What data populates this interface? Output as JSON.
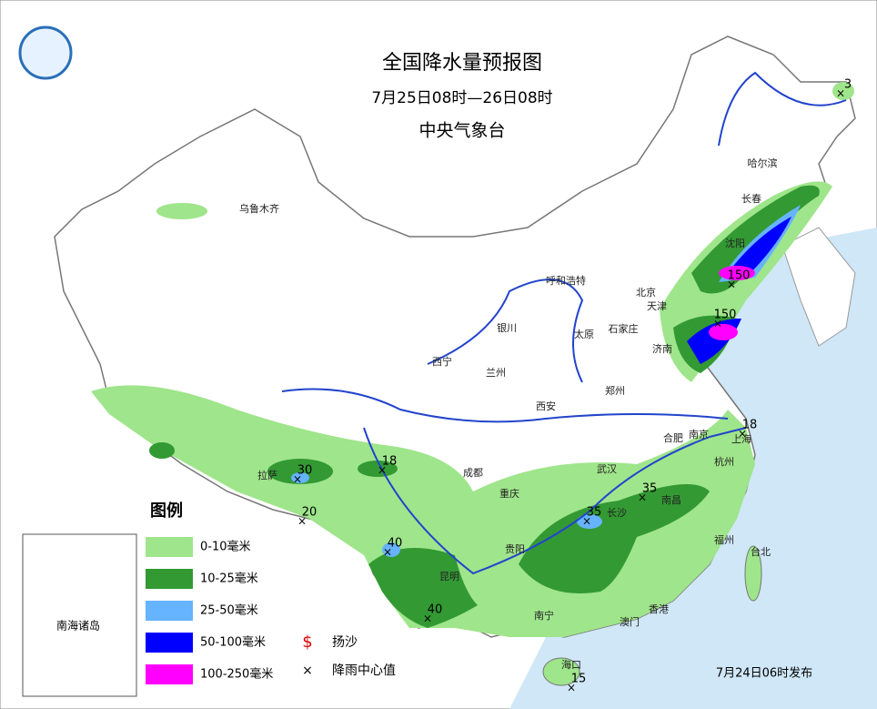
{
  "header": {
    "title": "全国降水量预报图",
    "period": "7月25日08时—26日08时",
    "issuer": "中央气象台"
  },
  "cities": [
    "乌鲁木齐",
    "哈尔滨",
    "长春",
    "沈阳",
    "呼和浩特",
    "北京",
    "天津",
    "银川",
    "太原",
    "石家庄",
    "济南",
    "西宁",
    "兰州",
    "西安",
    "郑州",
    "合肥",
    "南京",
    "上海",
    "杭州",
    "武汉",
    "成都",
    "重庆",
    "长沙",
    "南昌",
    "拉萨",
    "贵阳",
    "昆明",
    "福州",
    "台北",
    "南宁",
    "香港",
    "澳门",
    "海口"
  ],
  "rain_centers": [
    3,
    150,
    150,
    18,
    30,
    18,
    20,
    40,
    40,
    35,
    35,
    15
  ],
  "legend": {
    "title": "图例",
    "items": [
      "0-10毫米",
      "10-25毫米",
      "25-50毫米",
      "50-100毫米",
      "100-250毫米"
    ],
    "symbols": [
      "扬沙",
      "降雨中心值"
    ]
  },
  "inset": {
    "label": "南海诸岛"
  },
  "footer": {
    "issued": "7月24日06时发布"
  }
}
